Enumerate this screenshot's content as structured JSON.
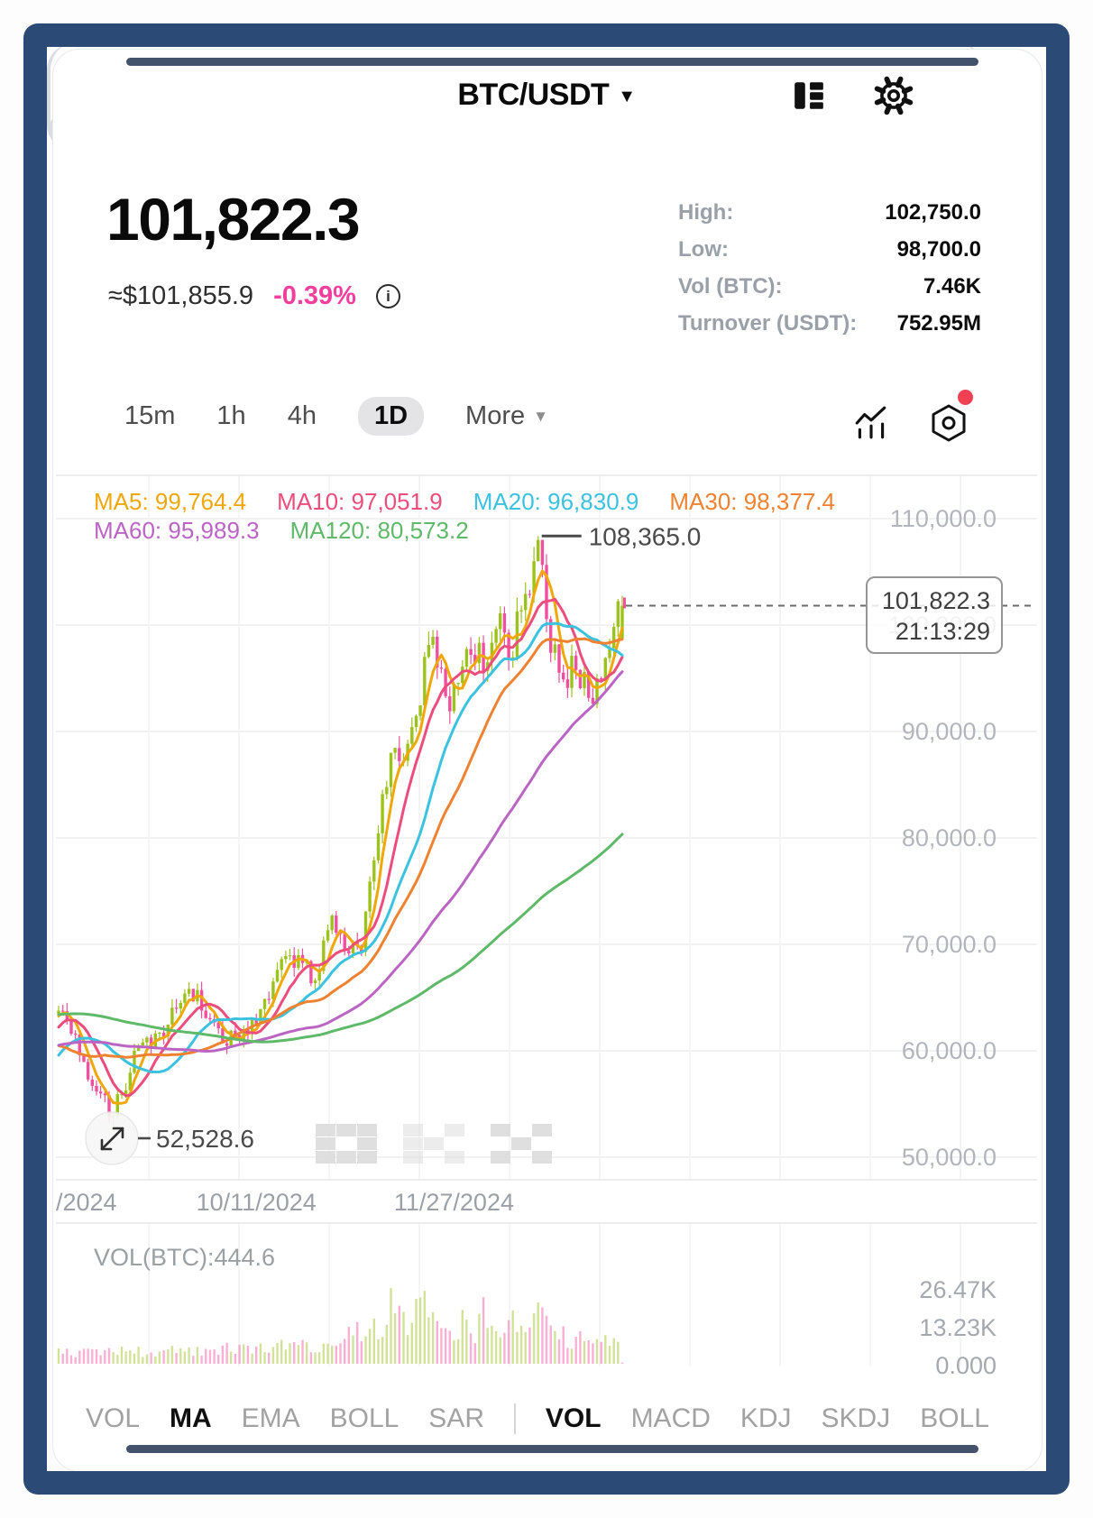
{
  "header": {
    "title": "BTC/USDT",
    "arrow": "▼"
  },
  "price": {
    "last": "101,822.3",
    "fiat": "≈$101,855.9",
    "change": "-0.39%",
    "change_color": "#f23e9c",
    "info_glyph": "i"
  },
  "stats": [
    {
      "label": "High:",
      "value": "102,750.0"
    },
    {
      "label": "Low:",
      "value": "98,700.0"
    },
    {
      "label": "Vol (BTC):",
      "value": "7.46K"
    },
    {
      "label": "Turnover (USDT):",
      "value": "752.95M"
    }
  ],
  "timeframes": {
    "items": [
      "15m",
      "1h",
      "4h",
      "1D",
      "More"
    ],
    "active": "1D",
    "more_arrow": "▼"
  },
  "ma_legend": [
    {
      "label": "MA5:",
      "value": "99,764.4",
      "color": "#f0a70a"
    },
    {
      "label": "MA10:",
      "value": "97,051.9",
      "color": "#ed4d7c"
    },
    {
      "label": "MA20:",
      "value": "96,830.9",
      "color": "#3bc2e0"
    },
    {
      "label": "MA30:",
      "value": "98,377.4",
      "color": "#ef8231"
    },
    {
      "label": "MA60:",
      "value": "95,989.3",
      "color": "#bb64c4"
    },
    {
      "label": "MA120:",
      "value": "80,573.2",
      "color": "#5eb968"
    }
  ],
  "volume": {
    "label": "VOL(BTC):444.6"
  },
  "indicator_tabs": {
    "main": [
      "VOL",
      "MA",
      "EMA",
      "BOLL",
      "SAR"
    ],
    "main_active": "MA",
    "sub": [
      "VOL",
      "MACD",
      "KDJ",
      "SKDJ",
      "BOLL"
    ],
    "sub_active": "VOL"
  },
  "watermark": "OKX",
  "chart_data": {
    "type": "candlestick",
    "symbol": "BTC/USDT",
    "interval": "1D",
    "up_color": "#9cc21c",
    "down_color": "#f14fa0",
    "y_axis": [
      {
        "value": 110000,
        "label": "110,000.0"
      },
      {
        "value": 100000,
        "label": "100,000.0"
      },
      {
        "value": 90000,
        "label": "90,000.0"
      },
      {
        "value": 80000,
        "label": "80,000.0"
      },
      {
        "value": 70000,
        "label": "70,000.0"
      },
      {
        "value": 60000,
        "label": "60,000.0"
      },
      {
        "value": 50000,
        "label": "50,000.0"
      }
    ],
    "x_axis": [
      {
        "day": null,
        "label": "/2024"
      },
      {
        "day": 174,
        "label": "10/11/2024"
      },
      {
        "day": 221,
        "label": "11/27/2024"
      }
    ],
    "visible_start_day": 127,
    "visible_end_day": 261,
    "close_keyframes": [
      [
        0,
        63500
      ],
      [
        11,
        60300
      ],
      [
        30,
        71000
      ],
      [
        48,
        69300
      ],
      [
        65,
        60300
      ],
      [
        76,
        56600
      ],
      [
        100,
        68200
      ],
      [
        107,
        54200
      ],
      [
        125,
        64000
      ],
      [
        129,
        62800
      ],
      [
        134,
        57300
      ],
      [
        140,
        53900
      ],
      [
        146,
        60500
      ],
      [
        151,
        61700
      ],
      [
        160,
        65700
      ],
      [
        166,
        60700
      ],
      [
        174,
        62500
      ],
      [
        179,
        67600
      ],
      [
        184,
        69000
      ],
      [
        188,
        66600
      ],
      [
        192,
        72700
      ],
      [
        195,
        69400
      ],
      [
        199,
        69300
      ],
      [
        201,
        75900
      ],
      [
        206,
        88000
      ],
      [
        209,
        87250
      ],
      [
        216,
        98900
      ],
      [
        220,
        91900
      ],
      [
        225,
        97200
      ],
      [
        229,
        96500
      ],
      [
        232,
        101100
      ],
      [
        234,
        96700
      ],
      [
        237,
        101400
      ],
      [
        240,
        106000
      ],
      [
        241,
        108000
      ],
      [
        244,
        97400
      ],
      [
        247,
        94900
      ],
      [
        250,
        95800
      ],
      [
        254,
        92600
      ],
      [
        257,
        96900
      ],
      [
        260,
        102235
      ],
      [
        261,
        101822.3
      ]
    ],
    "overrides": {
      "140": {
        "low": 52528.6
      },
      "241": {
        "high": 108365.0
      },
      "261": {
        "open": 98750,
        "high": 102750,
        "low": 98700,
        "close": 101822.3
      }
    },
    "ma_windows": [
      5,
      10,
      20,
      30,
      60,
      120
    ],
    "high_label": "108,365.0",
    "low_label": "52,528.6",
    "last_price_line": {
      "price": 101822.3,
      "tooltip_price": "101,822.3",
      "tooltip_time": "21:13:29"
    },
    "vol_keyframes": [
      [
        127,
        4
      ],
      [
        160,
        4.5
      ],
      [
        166,
        6
      ],
      [
        190,
        7
      ],
      [
        196,
        10
      ],
      [
        205,
        13
      ],
      [
        206,
        26.47
      ],
      [
        209,
        15
      ],
      [
        212,
        22
      ],
      [
        216,
        19
      ],
      [
        221,
        14
      ],
      [
        226,
        12
      ],
      [
        229,
        22
      ],
      [
        232,
        16
      ],
      [
        236,
        12
      ],
      [
        240,
        15
      ],
      [
        241,
        17
      ],
      [
        244,
        12
      ],
      [
        248,
        9
      ],
      [
        252,
        8
      ],
      [
        256,
        7
      ],
      [
        260,
        8
      ],
      [
        261,
        0.4446
      ]
    ],
    "vol_overrides": {
      "206": 26.47,
      "261": 0.4446
    },
    "vol_axis": [
      {
        "value": 26.47,
        "label": "26.47K"
      },
      {
        "value": 13.235,
        "label": "13.23K"
      },
      {
        "value": 0,
        "label": "0.000"
      }
    ]
  }
}
